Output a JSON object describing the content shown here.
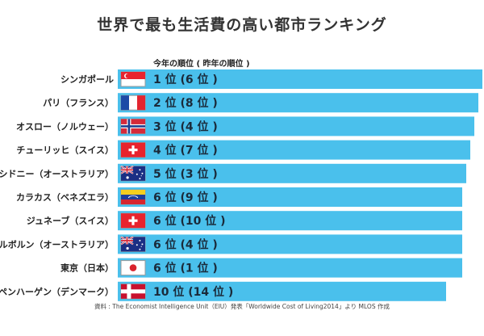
{
  "title": "世界で最も生活費の高い都市ランキング",
  "column_header": "今年の順位 ( 昨年の順位 )",
  "source": "資料 : The Economist Intelligence Unit（EIU）発表「Worldwide Cost of Living2014」より MLOS 作成",
  "colors": {
    "bar": "#4ac0ec",
    "flag_border": "#9a9a9a"
  },
  "chart_data": {
    "type": "bar",
    "orientation": "horizontal",
    "categories": [
      "シンガポール",
      "パリ（フランス）",
      "オスロー（ノルウェー）",
      "チューリッヒ（スイス）",
      "シドニー（オーストラリア）",
      "カラカス（ベネズエラ）",
      "ジュネーブ（スイス）",
      "メルボルン（オーストラリア）",
      "東京（日本）",
      "コペンハーゲン（デンマーク）"
    ],
    "rank_labels": [
      "1 位 (6 位 )",
      "2 位 (8 位 )",
      "3 位 (4 位 )",
      "4 位 (7 位 )",
      "5 位 (3 位 )",
      "6 位 (9 位 )",
      "6 位 (10 位 )",
      "6 位 (4 位 )",
      "6 位 (1 位 )",
      "10 位 (14 位 )"
    ],
    "values": [
      1,
      2,
      3,
      4,
      5,
      6,
      6,
      6,
      6,
      10
    ],
    "previous_values": [
      6,
      8,
      4,
      7,
      3,
      9,
      10,
      4,
      1,
      14
    ],
    "flags": [
      "singapore-flag",
      "france-flag",
      "norway-flag",
      "switzerland-flag",
      "australia-flag",
      "venezuela-flag",
      "switzerland-flag",
      "australia-flag",
      "japan-flag",
      "denmark-flag"
    ],
    "grid": false
  }
}
